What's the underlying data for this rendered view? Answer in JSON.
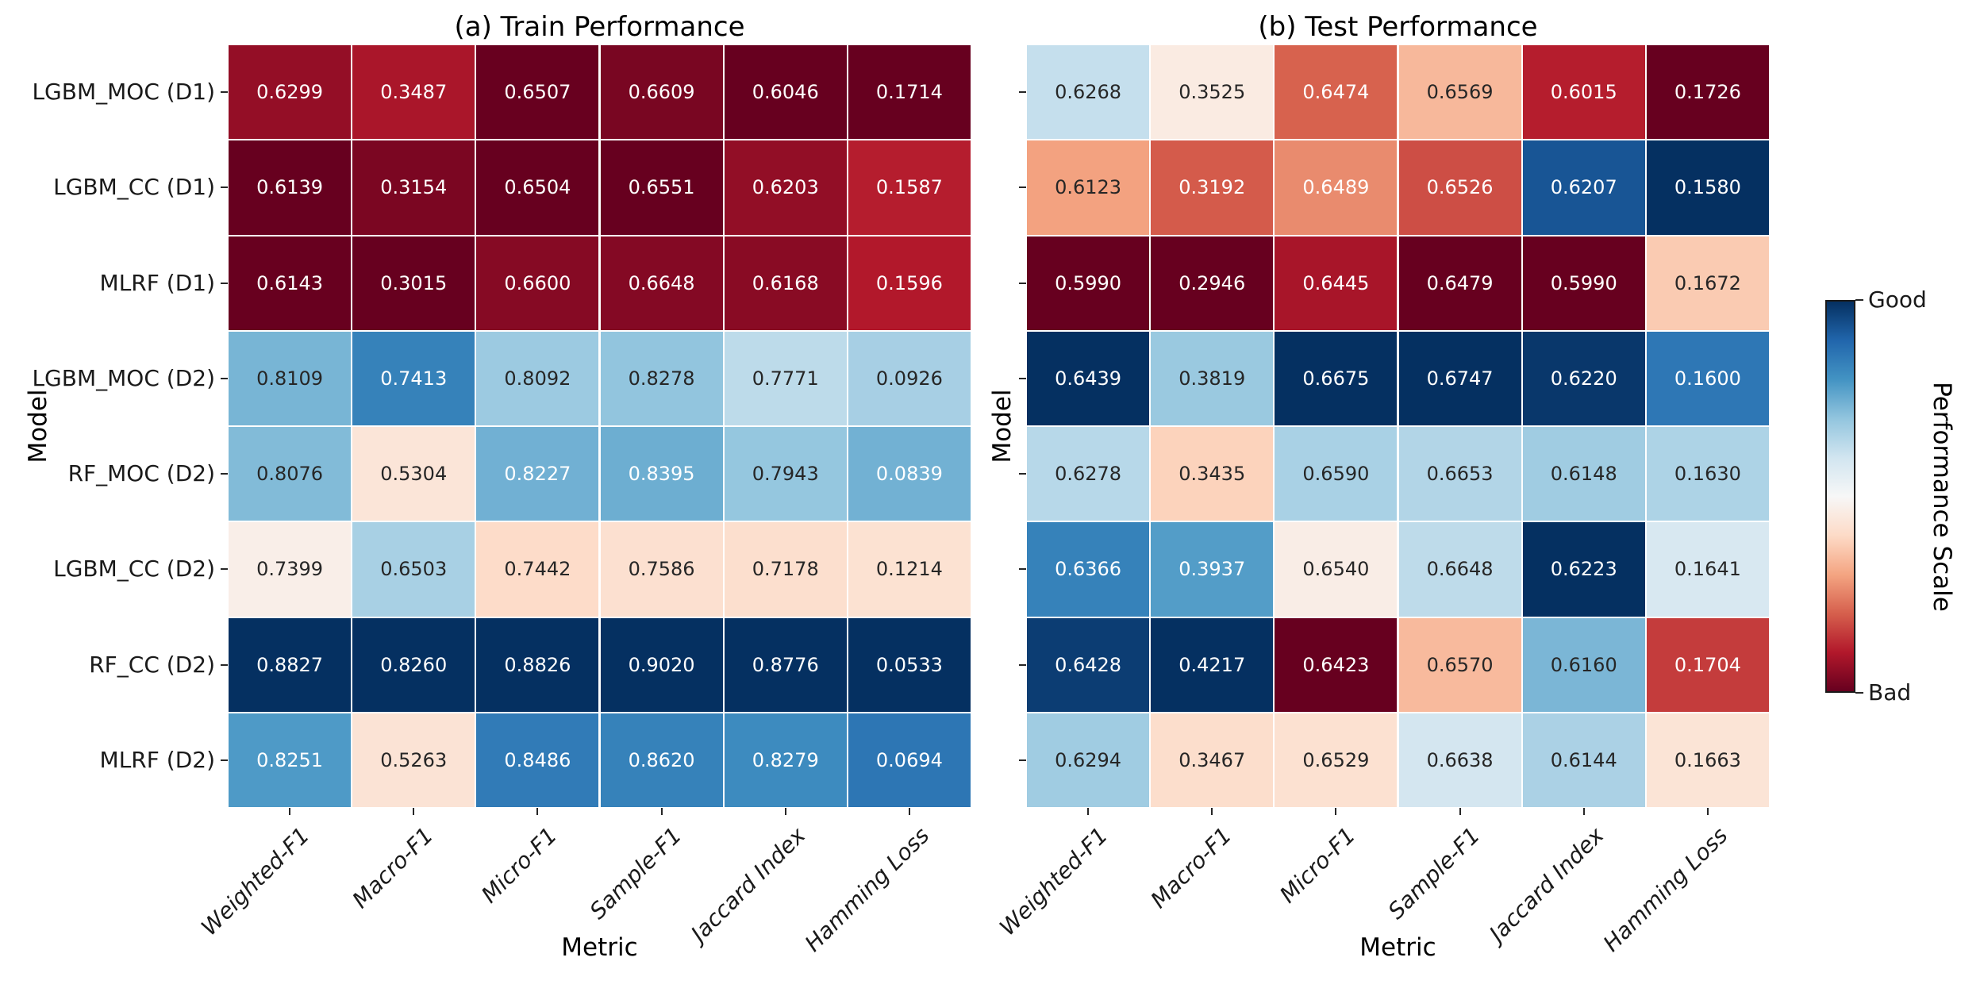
{
  "figure": {
    "background": "#ffffff",
    "xlabel": "Metric",
    "ylabel": "Model"
  },
  "chart_data": [
    {
      "type": "heatmap",
      "panel": "train",
      "title": "(a) Train Performance",
      "xlabel": "Metric",
      "ylabel": "Model",
      "columns": [
        "Weighted-F1",
        "Macro-F1",
        "Micro-F1",
        "Sample-F1",
        "Jaccard Index",
        "Hamming Loss"
      ],
      "rows": [
        "LGBM_MOC (D1)",
        "LGBM_CC (D1)",
        "MLRF (D1)",
        "LGBM_MOC (D2)",
        "RF_MOC (D2)",
        "LGBM_CC (D2)",
        "RF_CC (D2)",
        "MLRF (D2)"
      ],
      "show_row_labels": true,
      "values": [
        [
          "0.6299",
          "0.3487",
          "0.6507",
          "0.6609",
          "0.6046",
          "0.1714"
        ],
        [
          "0.6139",
          "0.3154",
          "0.6504",
          "0.6551",
          "0.6203",
          "0.1587"
        ],
        [
          "0.6143",
          "0.3015",
          "0.6600",
          "0.6648",
          "0.6168",
          "0.1596"
        ],
        [
          "0.8109",
          "0.7413",
          "0.8092",
          "0.8278",
          "0.7771",
          "0.0926"
        ],
        [
          "0.8076",
          "0.5304",
          "0.8227",
          "0.8395",
          "0.7943",
          "0.0839"
        ],
        [
          "0.7399",
          "0.6503",
          "0.7442",
          "0.7586",
          "0.7178",
          "0.1214"
        ],
        [
          "0.8827",
          "0.8260",
          "0.8826",
          "0.9020",
          "0.8776",
          "0.0533"
        ],
        [
          "0.8251",
          "0.5263",
          "0.8486",
          "0.8620",
          "0.8279",
          "0.0694"
        ]
      ]
    },
    {
      "type": "heatmap",
      "panel": "test",
      "title": "(b) Test Performance",
      "xlabel": "Metric",
      "ylabel": "Model",
      "columns": [
        "Weighted-F1",
        "Macro-F1",
        "Micro-F1",
        "Sample-F1",
        "Jaccard Index",
        "Hamming Loss"
      ],
      "rows": [
        "LGBM_MOC (D1)",
        "LGBM_CC (D1)",
        "MLRF (D1)",
        "LGBM_MOC (D2)",
        "RF_MOC (D2)",
        "LGBM_CC (D2)",
        "RF_CC (D2)",
        "MLRF (D2)"
      ],
      "show_row_labels": false,
      "values": [
        [
          "0.6268",
          "0.3525",
          "0.6474",
          "0.6569",
          "0.6015",
          "0.1726"
        ],
        [
          "0.6123",
          "0.3192",
          "0.6489",
          "0.6526",
          "0.6207",
          "0.1580"
        ],
        [
          "0.5990",
          "0.2946",
          "0.6445",
          "0.6479",
          "0.5990",
          "0.1672"
        ],
        [
          "0.6439",
          "0.3819",
          "0.6675",
          "0.6747",
          "0.6220",
          "0.1600"
        ],
        [
          "0.6278",
          "0.3435",
          "0.6590",
          "0.6653",
          "0.6148",
          "0.1630"
        ],
        [
          "0.6366",
          "0.3937",
          "0.6540",
          "0.6648",
          "0.6223",
          "0.1641"
        ],
        [
          "0.6428",
          "0.4217",
          "0.6423",
          "0.6570",
          "0.6160",
          "0.1704"
        ],
        [
          "0.6294",
          "0.3467",
          "0.6529",
          "0.6638",
          "0.6144",
          "0.1663"
        ]
      ]
    }
  ],
  "normalization": {
    "mode": "per-column-minmax",
    "lower_is_better_columns": [
      "Hamming Loss"
    ]
  },
  "colorbar": {
    "top_label": "Good",
    "bottom_label": "Bad",
    "label": "Performance Scale",
    "colormap": "RdBu",
    "anchors": [
      "#67001f",
      "#b2182b",
      "#d6604d",
      "#f4a582",
      "#fddbc7",
      "#f7f7f7",
      "#d1e5f0",
      "#92c5de",
      "#4393c3",
      "#2166ac",
      "#053061"
    ]
  },
  "annotation_colors": {
    "light_text": "#ffffff",
    "dark_text": "#262626"
  }
}
